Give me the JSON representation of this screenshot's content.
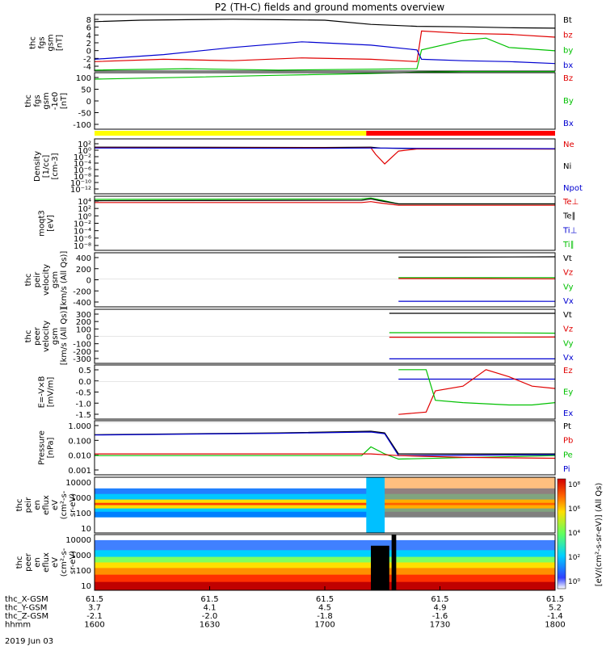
{
  "title": "P2 (TH-C) fields and ground moments overview",
  "date": "2019 Jun 03",
  "colors": {
    "black": "#000000",
    "red": "#e00000",
    "green": "#00c000",
    "blue": "#0000d0",
    "yellow": "#ffff00",
    "bar_red": "#ff0000"
  },
  "chart_data": {
    "type": "line",
    "x_ticks": [
      "1600",
      "1630",
      "1700",
      "1730",
      "1800"
    ],
    "ephemeris": {
      "labels": [
        "thc_X-GSM",
        "thc_Y-GSM",
        "thc_Z-GSM",
        "hhmm"
      ],
      "rows": [
        [
          "61.5",
          "61.5",
          "61.5",
          "61.5",
          "61.5"
        ],
        [
          "3.7",
          "4.1",
          "4.5",
          "4.9",
          "5.2"
        ],
        [
          "-2.1",
          "-2.0",
          "-1.8",
          "-1.6",
          "-1.4"
        ],
        [
          "1600",
          "1630",
          "1700",
          "1730",
          "1800"
        ]
      ]
    },
    "panels": [
      {
        "name": "fgs-gsm",
        "ylabel": [
          "thc",
          "fgs",
          "gsm",
          "[nT]"
        ],
        "ylim": [
          -4,
          8
        ],
        "ticks": [
          "8",
          "6",
          "4",
          "2",
          "0",
          "-2",
          "-4"
        ],
        "legend": [
          {
            "t": "Bt",
            "c": "black"
          },
          {
            "t": "bz",
            "c": "red"
          },
          {
            "t": "by",
            "c": "green"
          },
          {
            "t": "bx",
            "c": "blue"
          }
        ],
        "series": [
          {
            "name": "Bt",
            "c": "black",
            "x": [
              0,
              0.1,
              0.2,
              0.3,
              0.4,
              0.5,
              0.6,
              0.7,
              0.8,
              0.9,
              1
            ],
            "y": [
              6.5,
              6.8,
              6.9,
              7.0,
              6.9,
              6.8,
              5.9,
              5.5,
              5.4,
              5.2,
              5.1
            ]
          },
          {
            "name": "bz",
            "c": "red",
            "x": [
              0,
              0.15,
              0.3,
              0.45,
              0.6,
              0.7,
              0.71,
              0.8,
              0.9,
              1
            ],
            "y": [
              -2.0,
              -1.5,
              -1.8,
              -1.2,
              -1.5,
              -2.0,
              4.5,
              4.0,
              3.8,
              3.2
            ]
          },
          {
            "name": "by",
            "c": "green",
            "x": [
              0,
              0.2,
              0.4,
              0.6,
              0.7,
              0.71,
              0.8,
              0.85,
              0.9,
              1
            ],
            "y": [
              -3.8,
              -3.5,
              -3.8,
              -3.6,
              -3.5,
              0.5,
              2.5,
              3.0,
              1.0,
              0.3
            ]
          },
          {
            "name": "bx",
            "c": "blue",
            "x": [
              0,
              0.15,
              0.3,
              0.45,
              0.6,
              0.7,
              0.71,
              0.8,
              0.9,
              1
            ],
            "y": [
              -1.5,
              -0.5,
              1.0,
              2.2,
              1.5,
              0.5,
              -1.5,
              -1.8,
              -2.0,
              -2.4
            ]
          }
        ]
      },
      {
        "name": "fgs-gsm-zoom",
        "ylabel": [
          "thc",
          "fgs",
          "gsm",
          "-1e0",
          "[nT]"
        ],
        "ylim": [
          -120,
          100
        ],
        "ticks": [
          "100",
          "50",
          "0",
          "-50",
          "-100"
        ],
        "legend": [
          {
            "t": "Bz",
            "c": "red"
          },
          {
            "t": "By",
            "c": "green"
          },
          {
            "t": "Bx",
            "c": "blue"
          }
        ],
        "series": [
          {
            "name": "By",
            "c": "green",
            "x": [
              0,
              0.2,
              0.4,
              0.6,
              0.7,
              0.8,
              1
            ],
            "y": [
              75,
              82,
              90,
              97,
              102,
              104,
              104
            ]
          }
        ]
      },
      {
        "name": "density",
        "ylabel": [
          "Density",
          "[1/cc]",
          "[cm-3]"
        ],
        "ylim": [
          -15,
          3
        ],
        "ticks": [
          "10²",
          "10⁰",
          "10⁻²",
          "10⁻⁴",
          "10⁻⁶",
          "10⁻⁸",
          "10⁻¹⁰",
          "10⁻¹²"
        ],
        "legend": [
          {
            "t": "Ne",
            "c": "red"
          },
          {
            "t": "Ni",
            "c": "black"
          },
          {
            "t": "Npot",
            "c": "blue"
          }
        ],
        "series": [
          {
            "name": "Ni",
            "c": "black",
            "x": [
              0,
              0.5,
              0.6,
              0.62,
              0.7,
              1
            ],
            "y": [
              0.3,
              0.2,
              0.3,
              0,
              -0.2,
              -0.3
            ]
          },
          {
            "name": "Ne",
            "c": "red",
            "x": [
              0,
              0.55,
              0.6,
              0.61,
              0.63,
              0.66,
              0.7,
              1
            ],
            "y": [
              0.1,
              0.0,
              0.1,
              -2.0,
              -5.2,
              -1.0,
              -0.3,
              -0.3
            ]
          },
          {
            "name": "Npot",
            "c": "blue",
            "x": [
              0,
              0.5,
              0.6,
              0.7,
              1
            ],
            "y": [
              0.0,
              -0.1,
              0.0,
              -0.1,
              -0.2
            ]
          }
        ]
      },
      {
        "name": "moqt3",
        "ylabel": [
          "moqt3",
          "[eV]"
        ],
        "ylim": [
          -8,
          4
        ],
        "ticks": [
          "10⁴",
          "10²",
          "10⁰",
          "10⁻²",
          "10⁻⁴",
          "10⁻⁶",
          "10⁻⁸"
        ],
        "legend": [
          {
            "t": "Te⊥",
            "c": "red"
          },
          {
            "t": "Te∥",
            "c": "black"
          },
          {
            "t": "Ti⊥",
            "c": "blue"
          },
          {
            "t": "Ti∥",
            "c": "green"
          }
        ],
        "series": [
          {
            "name": "Ti∥",
            "c": "green",
            "x": [
              0,
              0.58,
              0.6,
              0.62,
              0.66,
              1
            ],
            "y": [
              3.3,
              3.4,
              3.6,
              3.2,
              2.3,
              2.3
            ]
          },
          {
            "name": "Te∥",
            "c": "black",
            "x": [
              0,
              0.58,
              0.6,
              0.62,
              0.66,
              1
            ],
            "y": [
              3.0,
              3.1,
              3.4,
              3.0,
              2.3,
              2.3
            ]
          },
          {
            "name": "Te⊥",
            "c": "red",
            "x": [
              0,
              0.58,
              0.6,
              0.62,
              0.66,
              1
            ],
            "y": [
              2.6,
              2.6,
              2.8,
              2.5,
              2.0,
              2.0
            ]
          }
        ]
      },
      {
        "name": "peir-velocity",
        "ylabel": [
          "thc",
          "peir",
          "velocity",
          "gsm",
          "[km/s (All Qs)]"
        ],
        "ylim": [
          -450,
          420
        ],
        "ticks": [
          "400",
          "200",
          "0",
          "-200",
          "-400"
        ],
        "legend": [
          {
            "t": "Vt",
            "c": "black"
          },
          {
            "t": "Vz",
            "c": "red"
          },
          {
            "t": "Vy",
            "c": "green"
          },
          {
            "t": "Vx",
            "c": "blue"
          }
        ],
        "series": [
          {
            "name": "Vt",
            "c": "black",
            "x": [
              0.66,
              0.8,
              1
            ],
            "y": [
              350,
              350,
              355
            ]
          },
          {
            "name": "Vy",
            "c": "green",
            "x": [
              0.66,
              0.8,
              1
            ],
            "y": [
              20,
              20,
              20
            ]
          },
          {
            "name": "Vz",
            "c": "red",
            "x": [
              0.66,
              0.8,
              1
            ],
            "y": [
              5,
              5,
              0
            ]
          },
          {
            "name": "Vx",
            "c": "blue",
            "x": [
              0.66,
              0.8,
              1
            ],
            "y": [
              -360,
              -360,
              -362
            ]
          }
        ]
      },
      {
        "name": "peer-velocity",
        "ylabel": [
          "thc",
          "peer",
          "velocity",
          "gsm",
          "[km/s (All Qs)]"
        ],
        "ylim": [
          -300,
          300
        ],
        "ticks": [
          "300",
          "200",
          "100",
          "0",
          "-100",
          "-200",
          "-300"
        ],
        "legend": [
          {
            "t": "Vt",
            "c": "black"
          },
          {
            "t": "Vz",
            "c": "red"
          },
          {
            "t": "Vy",
            "c": "green"
          },
          {
            "t": "Vx",
            "c": "blue"
          }
        ],
        "series": [
          {
            "name": "Vt",
            "c": "black",
            "x": [
              0.64,
              0.8,
              1
            ],
            "y": [
              255,
              255,
              255
            ]
          },
          {
            "name": "Vy",
            "c": "green",
            "x": [
              0.64,
              0.8,
              1
            ],
            "y": [
              40,
              40,
              35
            ]
          },
          {
            "name": "Vz",
            "c": "red",
            "x": [
              0.64,
              0.8,
              1
            ],
            "y": [
              -10,
              -10,
              -8
            ]
          },
          {
            "name": "Vx",
            "c": "blue",
            "x": [
              0.64,
              0.8,
              1
            ],
            "y": [
              -250,
              -250,
              -250
            ]
          }
        ]
      },
      {
        "name": "electric-field",
        "ylabel": [
          "E=-V×B",
          "[mV/m]"
        ],
        "ylim": [
          -1.6,
          0.7
        ],
        "ticks": [
          "0.5",
          "0.0",
          "-0.5",
          "-1.0",
          "-1.5"
        ],
        "legend": [
          {
            "t": "Ez",
            "c": "red"
          },
          {
            "t": "Ey",
            "c": "green"
          },
          {
            "t": "Ex",
            "c": "blue"
          }
        ],
        "series": [
          {
            "name": "Ex",
            "c": "blue",
            "x": [
              0.66,
              0.7,
              0.72,
              0.8,
              0.9,
              0.95,
              1
            ],
            "y": [
              0.1,
              0.1,
              0.1,
              0.1,
              0.1,
              0.1,
              0.1
            ]
          },
          {
            "name": "Ez",
            "c": "red",
            "x": [
              0.66,
              0.72,
              0.74,
              0.8,
              0.85,
              0.9,
              0.95,
              1
            ],
            "y": [
              -1.4,
              -1.3,
              -0.4,
              -0.2,
              0.5,
              0.2,
              -0.2,
              -0.3
            ]
          },
          {
            "name": "Ey",
            "c": "green",
            "x": [
              0.66,
              0.72,
              0.74,
              0.8,
              0.9,
              0.95,
              1
            ],
            "y": [
              0.5,
              0.5,
              -0.8,
              -0.9,
              -1.0,
              -1.0,
              -0.9
            ]
          }
        ]
      },
      {
        "name": "pressure",
        "ylabel": [
          "Pressure",
          "[nPa]"
        ],
        "ylim": [
          -3,
          0.1
        ],
        "ticks": [
          "1.000",
          "0.100",
          "0.010",
          "0.001"
        ],
        "legend": [
          {
            "t": "Pt",
            "c": "black"
          },
          {
            "t": "Pb",
            "c": "red"
          },
          {
            "t": "Pe",
            "c": "green"
          },
          {
            "t": "Pi",
            "c": "blue"
          }
        ],
        "series": [
          {
            "name": "Pt",
            "c": "black",
            "x": [
              0,
              0.2,
              0.4,
              0.6,
              0.63,
              0.66,
              1
            ],
            "y": [
              -0.7,
              -0.65,
              -0.6,
              -0.5,
              -0.6,
              -1.8,
              -1.8
            ]
          },
          {
            "name": "Pi",
            "c": "blue",
            "x": [
              0,
              0.2,
              0.4,
              0.6,
              0.63,
              0.66,
              1
            ],
            "y": [
              -0.72,
              -0.67,
              -0.62,
              -0.55,
              -0.65,
              -1.9,
              -1.85
            ]
          },
          {
            "name": "Pe",
            "c": "green",
            "x": [
              0,
              0.58,
              0.6,
              0.63,
              0.66,
              1
            ],
            "y": [
              -1.9,
              -1.9,
              -1.4,
              -1.8,
              -2.1,
              -1.9
            ]
          },
          {
            "name": "Pb",
            "c": "red",
            "x": [
              0,
              0.3,
              0.6,
              0.66,
              0.8,
              1
            ],
            "y": [
              -1.8,
              -1.8,
              -1.8,
              -1.9,
              -2.0,
              -2.05
            ]
          }
        ]
      },
      {
        "name": "peir-spectrogram",
        "type": "heatmap",
        "ylabel": [
          "thc",
          "peir",
          "en",
          "eflux",
          "eV",
          "(cm²-s-",
          "sr-eV)"
        ],
        "ticks": [
          "10000",
          "1000",
          "100",
          "10"
        ]
      },
      {
        "name": "peer-spectrogram",
        "type": "heatmap",
        "ylabel": [
          "thc",
          "peer",
          "en",
          "eflux",
          "eV",
          "(cm²-s-",
          "sr-eV)"
        ],
        "ticks": [
          "10000",
          "1000",
          "100",
          "10"
        ]
      }
    ],
    "colorbar": {
      "label": "[eV/(cm²-s-sr-eV)] (All Qs)",
      "ticks": [
        "10⁸",
        "10⁶",
        "10⁴",
        "10²",
        "10⁰"
      ]
    }
  }
}
